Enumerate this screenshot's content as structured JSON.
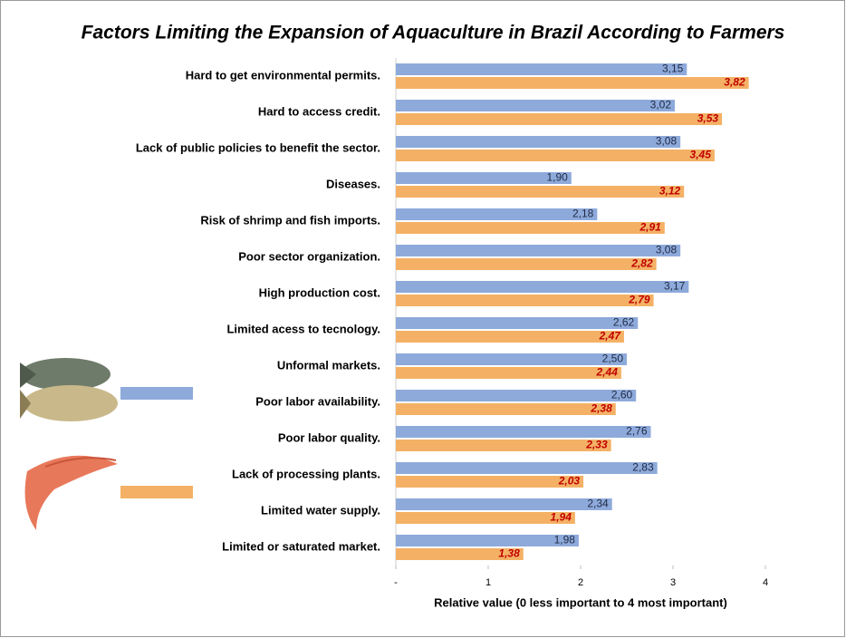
{
  "chart_data": {
    "type": "grouped_barh",
    "title": "Factors Limiting the Expansion of Aquaculture in Brazil According to Farmers",
    "x_label": "Relative value (0 less important to 4 most important)",
    "categories": [
      "Hard to get environmental permits.",
      "Hard to access credit.",
      "Lack of public policies to benefit the sector.",
      "Diseases.",
      "Risk of shrimp and fish imports.",
      "Poor sector organization.",
      "High production cost.",
      "Limited acess to tecnology.",
      "Unformal markets.",
      "Poor labor availability.",
      "Poor labor quality.",
      "Lack of processing plants.",
      "Limited water supply.",
      "Limited or saturated market."
    ],
    "series": [
      {
        "color": "#8eaadb",
        "values": [
          3.15,
          3.02,
          3.08,
          1.9,
          2.18,
          3.08,
          3.17,
          2.62,
          2.5,
          2.6,
          2.76,
          2.83,
          2.34,
          1.98
        ],
        "value_labels": [
          "3,15",
          "3,02",
          "3,08",
          "1,90",
          "2,18",
          "3,08",
          "3,17",
          "2,62",
          "2,50",
          "2,60",
          "2,76",
          "2,83",
          "2,34",
          "1,98"
        ]
      },
      {
        "color": "#f4b165",
        "values": [
          3.82,
          3.53,
          3.45,
          3.12,
          2.91,
          2.82,
          2.79,
          2.47,
          2.44,
          2.38,
          2.33,
          2.03,
          1.94,
          1.38
        ],
        "value_labels": [
          "3,82",
          "3,53",
          "3,45",
          "3,12",
          "2,91",
          "2,82",
          "2,79",
          "2,47",
          "2,44",
          "2,38",
          "2,33",
          "2,03",
          "1,94",
          "1,38"
        ]
      }
    ],
    "xlim": [
      0,
      4
    ],
    "xticks": [
      {
        "value": 0,
        "label": "-"
      },
      1,
      2,
      3,
      4
    ]
  }
}
